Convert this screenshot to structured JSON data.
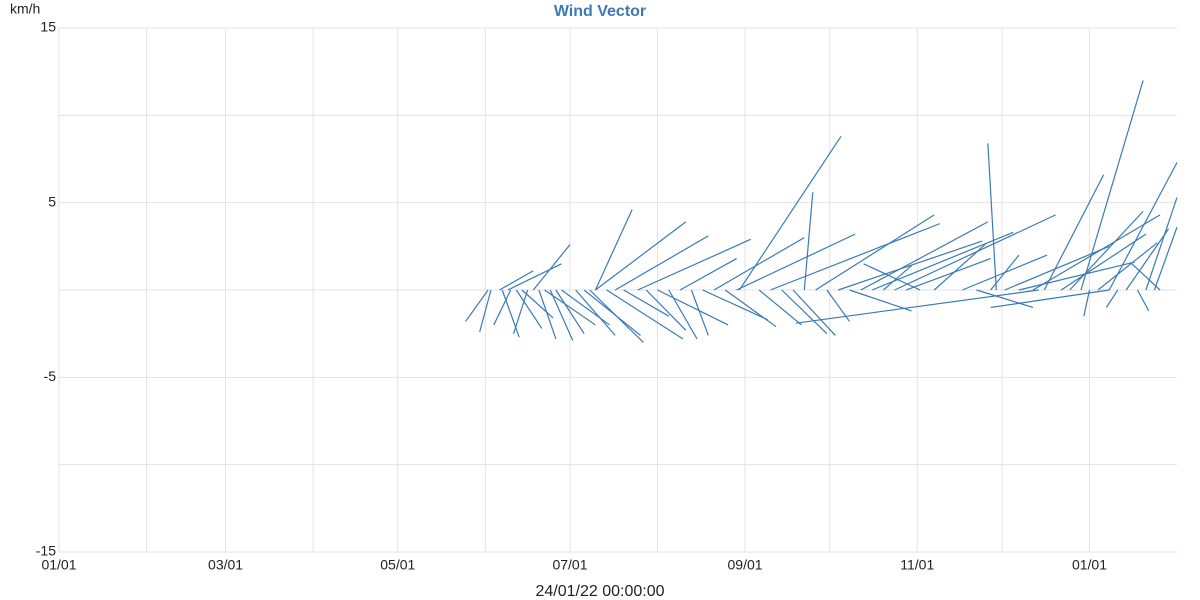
{
  "chart_data": {
    "type": "vector",
    "title": "Wind Vector",
    "y_unit": "km/h",
    "footer": "24/01/22 00:00:00",
    "xlim": [
      0,
      396
    ],
    "ylim": [
      -15,
      15
    ],
    "xticks": [
      {
        "value": 0,
        "label": "01/01"
      },
      {
        "value": 59,
        "label": "03/01"
      },
      {
        "value": 120,
        "label": "05/01"
      },
      {
        "value": 181,
        "label": "07/01"
      },
      {
        "value": 243,
        "label": "09/01"
      },
      {
        "value": 304,
        "label": "11/01"
      },
      {
        "value": 365,
        "label": "01/01"
      }
    ],
    "xgrid": [
      31,
      90,
      151,
      212,
      273,
      334
    ],
    "yticks": [
      -15,
      -5,
      5,
      15
    ],
    "ygrid": [
      -10,
      0,
      10
    ],
    "grid": true,
    "vectors": {
      "color": "#3a7ab5",
      "x": [
        152,
        153,
        156,
        157,
        159,
        160,
        162,
        164,
        166,
        168,
        170,
        172,
        174,
        176,
        178,
        190,
        183,
        186,
        188,
        190,
        194,
        197,
        200,
        205,
        208,
        212,
        216,
        220,
        224,
        228,
        232,
        236,
        240,
        241,
        248,
        252,
        256,
        260,
        264,
        268,
        272,
        276,
        280,
        284,
        288,
        292,
        296,
        300,
        305,
        310,
        332,
        320,
        325,
        330,
        335,
        340,
        345,
        349,
        355,
        358,
        362,
        365,
        368,
        372,
        375,
        378,
        382,
        385,
        388,
        390,
        347,
        372
      ],
      "x_end": [
        144,
        149,
        168,
        163,
        178,
        154,
        171,
        175,
        161,
        181,
        176,
        190,
        182,
        186,
        195,
        203,
        197,
        206,
        207,
        222,
        221,
        230,
        216,
        245,
        222,
        237,
        226,
        240,
        230,
        251,
        264,
        254,
        282,
        277,
        263,
        312,
        272,
        275,
        267,
        310,
        280,
        327,
        302,
        329,
        338,
        302,
        353,
        330,
        285,
        328,
        329,
        350,
        345,
        340,
        372,
        381,
        390,
        370,
        385,
        384,
        384,
        363,
        389,
        396,
        371,
        393,
        386,
        396,
        396,
        380,
        261,
        330
      ],
      "values": [
        -1.8,
        -2.4,
        1.1,
        -2.7,
        1.5,
        -2.0,
        -2.2,
        -1.6,
        -2.5,
        2.6,
        -2.8,
        -2.0,
        -2.9,
        -2.5,
        -2.0,
        4.6,
        -2.6,
        -2.6,
        -3.0,
        3.9,
        -2.8,
        3.1,
        -1.5,
        2.9,
        -2.3,
        -2.0,
        -2.8,
        1.8,
        -2.6,
        -1.7,
        3.0,
        -2.1,
        3.2,
        8.8,
        -2.0,
        3.8,
        -2.5,
        -2.6,
        5.6,
        4.3,
        -1.8,
        2.8,
        -1.2,
        3.9,
        3.3,
        1.4,
        4.3,
        1.8,
        1.5,
        2.6,
        8.4,
        2.0,
        -1.0,
        2.0,
        2.5,
        1.6,
        4.3,
        6.6,
        3.2,
        4.5,
        12.0,
        -1.5,
        2.7,
        7.3,
        -1.0,
        3.5,
        -1.2,
        5.3,
        3.6,
        1.5,
        -1.9,
        -1.0
      ]
    }
  }
}
